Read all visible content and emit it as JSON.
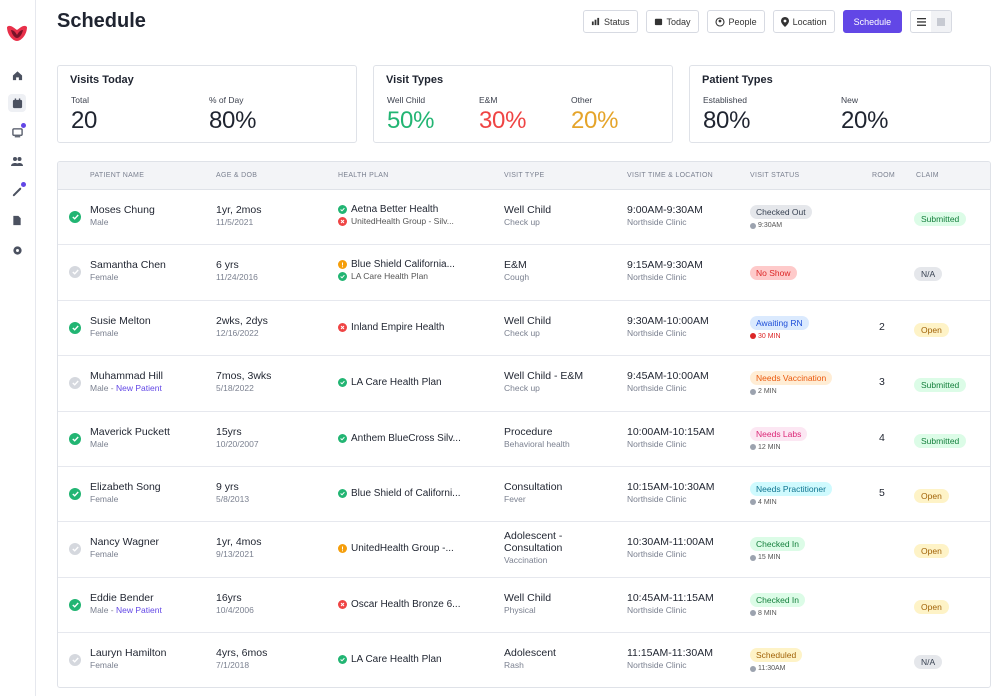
{
  "page": {
    "title": "Schedule"
  },
  "toolbar": {
    "status": "Status",
    "today": "Today",
    "people": "People",
    "location": "Location",
    "schedule": "Schedule"
  },
  "cards": {
    "visits_today": {
      "title": "Visits Today",
      "stats": [
        {
          "label": "Total",
          "value": "20"
        },
        {
          "label": "% of Day",
          "value": "80%"
        }
      ]
    },
    "visit_types": {
      "title": "Visit Types",
      "stats": [
        {
          "label": "Well Child",
          "value": "50%"
        },
        {
          "label": "E&M",
          "value": "30%"
        },
        {
          "label": "Other",
          "value": "20%"
        }
      ]
    },
    "patient_types": {
      "title": "Patient Types",
      "stats": [
        {
          "label": "Established",
          "value": "80%"
        },
        {
          "label": "New",
          "value": "20%"
        }
      ]
    }
  },
  "table": {
    "headers": [
      "Patient Name",
      "Age & DOB",
      "Health Plan",
      "Visit Type",
      "Visit Time & Location",
      "Visit Status",
      "Room",
      "Claim"
    ],
    "rows": [
      {
        "done": true,
        "name": "Moses Chung",
        "sex": "Male",
        "new": "",
        "age": "1yr, 2mos",
        "dob": "11/5/2021",
        "plan1": "Aetna Better Health",
        "plan1_status": "ok",
        "plan2": "UnitedHealth Group - Silv...",
        "plan2_status": "err",
        "visit": "Well Child",
        "visit_sub": "Check up",
        "time": "9:00AM-9:30AM",
        "location": "Northside Clinic",
        "status": "Checked Out",
        "status_color": "gray",
        "status_sub": "9:30AM",
        "status_sub_warn": false,
        "room": "",
        "claim": "Submitted",
        "claim_style": "sub"
      },
      {
        "done": false,
        "name": "Samantha Chen",
        "sex": "Female",
        "new": "",
        "age": "6 yrs",
        "dob": "11/24/2016",
        "plan1": "Blue Shield California...",
        "plan1_status": "warn",
        "plan2": "LA Care Health Plan",
        "plan2_status": "ok",
        "visit": "E&M",
        "visit_sub": "Cough",
        "time": "9:15AM-9:30AM",
        "location": "Northside Clinic",
        "status": "No Show",
        "status_color": "red",
        "status_sub": "",
        "status_sub_warn": false,
        "room": "",
        "claim": "N/A",
        "claim_style": "na"
      },
      {
        "done": true,
        "name": "Susie Melton",
        "sex": "Female",
        "new": "",
        "age": "2wks, 2dys",
        "dob": "12/16/2022",
        "plan1": "Inland Empire Health",
        "plan1_status": "err",
        "plan2": "",
        "plan2_status": "",
        "visit": "Well Child",
        "visit_sub": "Check up",
        "time": "9:30AM-10:00AM",
        "location": "Northside Clinic",
        "status": "Awaiting RN",
        "status_color": "blue",
        "status_sub": "30 MIN",
        "status_sub_warn": true,
        "room": "2",
        "claim": "Open",
        "claim_style": "open"
      },
      {
        "done": false,
        "name": "Muhammad Hill",
        "sex": "Male",
        "new": "New Patient",
        "age": "7mos, 3wks",
        "dob": "5/18/2022",
        "plan1": "LA Care Health Plan",
        "plan1_status": "ok",
        "plan2": "",
        "plan2_status": "",
        "visit": "Well Child - E&M",
        "visit_sub": "Check up",
        "time": "9:45AM-10:00AM",
        "location": "Northside Clinic",
        "status": "Needs Vaccination",
        "status_color": "orange",
        "status_sub": "2 MIN",
        "status_sub_warn": false,
        "room": "3",
        "claim": "Submitted",
        "claim_style": "sub"
      },
      {
        "done": true,
        "name": "Maverick Puckett",
        "sex": "Male",
        "new": "",
        "age": "15yrs",
        "dob": "10/20/2007",
        "plan1": "Anthem BlueCross Silv...",
        "plan1_status": "ok",
        "plan2": "",
        "plan2_status": "",
        "visit": "Procedure",
        "visit_sub": "Behavioral health",
        "time": "10:00AM-10:15AM",
        "location": "Northside Clinic",
        "status": "Needs Labs",
        "status_color": "pink",
        "status_sub": "12 MIN",
        "status_sub_warn": false,
        "room": "4",
        "claim": "Submitted",
        "claim_style": "sub"
      },
      {
        "done": true,
        "name": "Elizabeth Song",
        "sex": "Female",
        "new": "",
        "age": "9 yrs",
        "dob": "5/8/2013",
        "plan1": "Blue Shield of Californi...",
        "plan1_status": "ok",
        "plan2": "",
        "plan2_status": "",
        "visit": "Consultation",
        "visit_sub": "Fever",
        "time": "10:15AM-10:30AM",
        "location": "Northside Clinic",
        "status": "Needs Practitioner",
        "status_color": "cyan",
        "status_sub": "4 MIN",
        "status_sub_warn": false,
        "room": "5",
        "claim": "Open",
        "claim_style": "open"
      },
      {
        "done": false,
        "name": "Nancy Wagner",
        "sex": "Female",
        "new": "",
        "age": "1yr, 4mos",
        "dob": "9/13/2021",
        "plan1": "UnitedHealth Group -...",
        "plan1_status": "warn",
        "plan2": "",
        "plan2_status": "",
        "visit": "Adolescent -",
        "visit2": "Consultation",
        "visit_sub": "Vaccination",
        "time": "10:30AM-11:00AM",
        "location": "Northside Clinic",
        "status": "Checked In",
        "status_color": "green",
        "status_sub": "15 MIN",
        "status_sub_warn": false,
        "room": "",
        "claim": "Open",
        "claim_style": "open"
      },
      {
        "done": true,
        "name": "Eddie Bender",
        "sex": "Male",
        "new": "New Patient",
        "age": "16yrs",
        "dob": "10/4/2006",
        "plan1": "Oscar Health Bronze 6...",
        "plan1_status": "err",
        "plan2": "",
        "plan2_status": "",
        "visit": "Well Child",
        "visit_sub": "Physical",
        "time": "10:45AM-11:15AM",
        "location": "Northside Clinic",
        "status": "Checked In",
        "status_color": "green",
        "status_sub": "8 MIN",
        "status_sub_warn": false,
        "room": "",
        "claim": "Open",
        "claim_style": "open"
      },
      {
        "done": false,
        "name": "Lauryn Hamilton",
        "sex": "Female",
        "new": "",
        "age": "4yrs, 6mos",
        "dob": "7/1/2018",
        "plan1": "LA Care Health Plan",
        "plan1_status": "ok",
        "plan2": "",
        "plan2_status": "",
        "visit": "Adolescent",
        "visit_sub": "Rash",
        "time": "11:15AM-11:30AM",
        "location": "Northside Clinic",
        "status": "Scheduled",
        "status_color": "yellow",
        "status_sub": "11:30AM",
        "status_sub_warn": false,
        "room": "",
        "claim": "N/A",
        "claim_style": "na"
      }
    ]
  },
  "colors": {
    "accent": "#6247e6",
    "success": "#22b573",
    "danger": "#ef4444",
    "warning": "#e5a42a"
  }
}
